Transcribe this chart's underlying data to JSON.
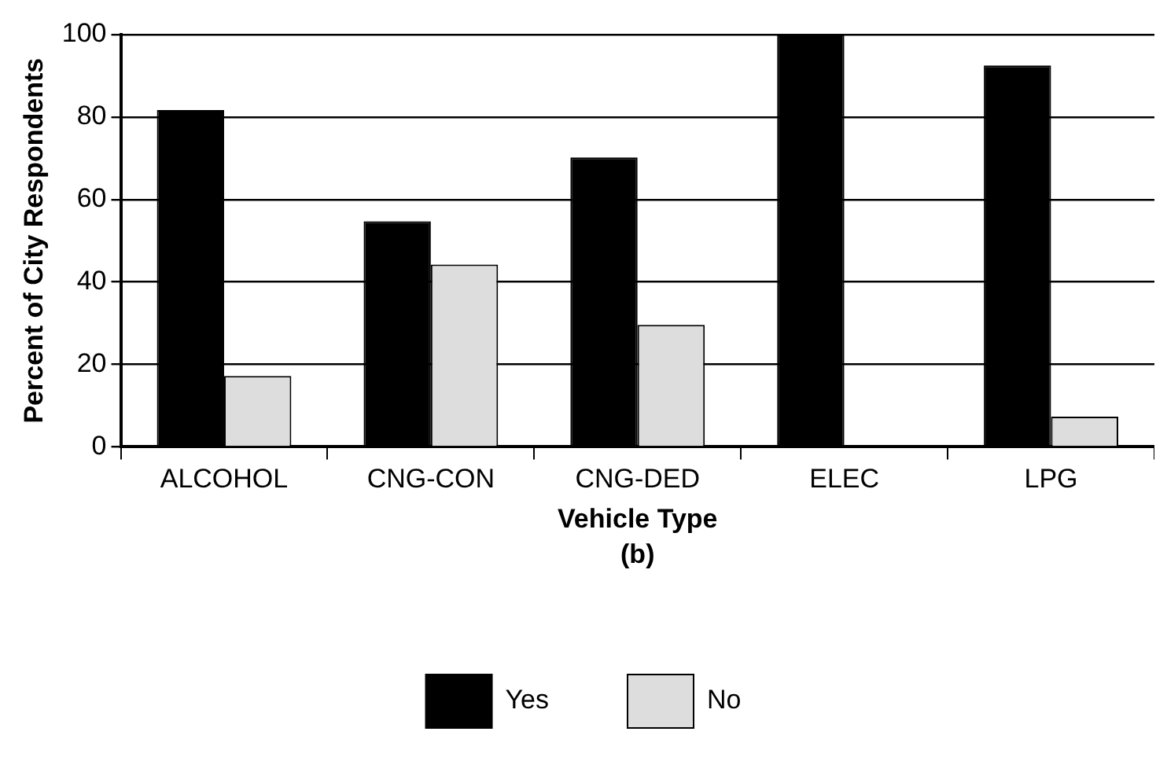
{
  "chart_data": {
    "type": "bar",
    "xlabel": "Vehicle Type",
    "ylabel": "Percent of City Respondents",
    "annotations": [
      "(b)"
    ],
    "categories": [
      "ALCOHOL",
      "CNG-CON",
      "CNG-DED",
      "ELEC",
      "LPG"
    ],
    "series": [
      {
        "name": "Yes",
        "color": "#000000",
        "values": [
          81.7,
          54.7,
          70.2,
          100,
          92.5
        ]
      },
      {
        "name": "No",
        "color": "#dddddd",
        "values": [
          17.2,
          44.2,
          29.6,
          0,
          7.3
        ]
      }
    ],
    "ylim": [
      0,
      100
    ],
    "yticks": [
      0,
      20,
      40,
      60,
      80,
      100
    ],
    "grid": "y",
    "legend": "bottom"
  }
}
